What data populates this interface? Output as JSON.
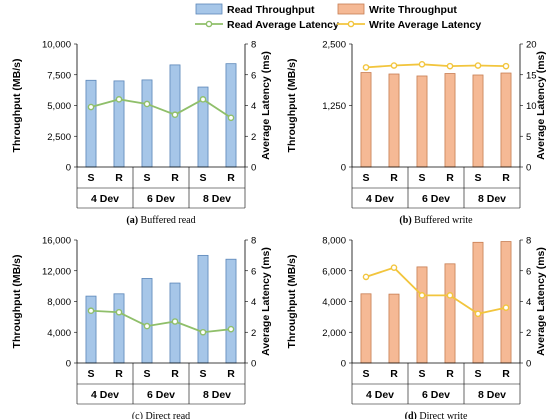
{
  "legend": {
    "items": [
      {
        "label": "Read Throughput",
        "kind": "bar",
        "color": "#a6c6e8",
        "edge": "#5b86b8"
      },
      {
        "label": "Write Throughput",
        "kind": "bar",
        "color": "#f5b995",
        "edge": "#c77d52"
      },
      {
        "label": "Read Average Latency",
        "kind": "line",
        "color": "#8fbf6a",
        "marker_fill": "#ffffff"
      },
      {
        "label": "Write Average Latency",
        "kind": "line",
        "color": "#f2c53d",
        "marker_fill": "#ffffff"
      }
    ]
  },
  "chart_data": [
    {
      "type": "bar",
      "caption_letter": "(a)",
      "caption_text": " Buffered read",
      "categories": [
        "S",
        "R",
        "S",
        "R",
        "S",
        "R"
      ],
      "groups": [
        "4 Dev",
        "6 Dev",
        "8 Dev"
      ],
      "ylabel": "Throughput (MB/s)",
      "y2label": "Average Latency  (ms)",
      "ylim": [
        0,
        10000
      ],
      "yticks": [
        "0",
        "2,500",
        "5,000",
        "7,500",
        "10,000"
      ],
      "y2lim": [
        0,
        8
      ],
      "y2ticks": [
        "0",
        "2",
        "4",
        "6",
        "8"
      ],
      "bar_color": "#a6c6e8",
      "bar_edge": "#5b86b8",
      "line_color": "#8fbf6a",
      "series": [
        {
          "name": "Read Throughput",
          "values": [
            7050,
            7000,
            7080,
            8300,
            6500,
            8400
          ]
        },
        {
          "name": "Read Average Latency",
          "values": [
            3.9,
            4.4,
            4.1,
            3.4,
            4.4,
            3.2
          ]
        }
      ]
    },
    {
      "type": "bar",
      "caption_letter": "(b)",
      "caption_text": " Buffered write",
      "categories": [
        "S",
        "R",
        "S",
        "R",
        "S",
        "R"
      ],
      "groups": [
        "4 Dev",
        "6 Dev",
        "8 Dev"
      ],
      "ylabel": "Throughput (MB/s)",
      "y2label": "Average Latency (ms)",
      "ylim": [
        0,
        2500
      ],
      "yticks": [
        "0",
        "1,250",
        "2,500"
      ],
      "y2lim": [
        0,
        20
      ],
      "y2ticks": [
        "0",
        "5",
        "10",
        "15",
        "20"
      ],
      "bar_color": "#f5b995",
      "bar_edge": "#c77d52",
      "line_color": "#f2c53d",
      "series": [
        {
          "name": "Write Throughput",
          "values": [
            1920,
            1890,
            1850,
            1900,
            1870,
            1910
          ]
        },
        {
          "name": "Write Average Latency",
          "values": [
            16.2,
            16.5,
            16.7,
            16.4,
            16.5,
            16.4
          ]
        }
      ]
    },
    {
      "type": "bar",
      "caption_letter": "",
      "caption_text": "(c) Direct read",
      "categories": [
        "S",
        "R",
        "S",
        "R",
        "S",
        "R"
      ],
      "groups": [
        "4 Dev",
        "6 Dev",
        "8 Dev"
      ],
      "ylabel": "Throughput (MB/s)",
      "y2label": "Average Latency (ms)",
      "ylim": [
        0,
        16000
      ],
      "yticks": [
        "0",
        "4,000",
        "8,000",
        "12,000",
        "16,000"
      ],
      "y2lim": [
        0,
        8
      ],
      "y2ticks": [
        "0",
        "2",
        "4",
        "6",
        "8"
      ],
      "bar_color": "#a6c6e8",
      "bar_edge": "#5b86b8",
      "line_color": "#8fbf6a",
      "series": [
        {
          "name": "Read Throughput",
          "values": [
            8700,
            9000,
            11000,
            10400,
            14000,
            13500
          ]
        },
        {
          "name": "Read Average Latency",
          "values": [
            3.4,
            3.3,
            2.4,
            2.7,
            2.0,
            2.2
          ]
        }
      ]
    },
    {
      "type": "bar",
      "caption_letter": "(d)",
      "caption_text": " Direct write",
      "categories": [
        "S",
        "R",
        "S",
        "R",
        "S",
        "R"
      ],
      "groups": [
        "4 Dev",
        "6 Dev",
        "8 Dev"
      ],
      "ylabel": "Throughput (MB/s)",
      "y2label": "Average Latency (ms)",
      "ylim": [
        0,
        8000
      ],
      "yticks": [
        "0",
        "2,000",
        "4,000",
        "6,000",
        "8,000"
      ],
      "y2lim": [
        0,
        8
      ],
      "y2ticks": [
        "0",
        "2",
        "4",
        "6",
        "8"
      ],
      "bar_color": "#f5b995",
      "bar_edge": "#c77d52",
      "line_color": "#f2c53d",
      "series": [
        {
          "name": "Write Throughput",
          "values": [
            4500,
            4480,
            6250,
            6450,
            7850,
            7900
          ]
        },
        {
          "name": "Write Average Latency",
          "values": [
            5.6,
            6.2,
            4.4,
            4.4,
            3.2,
            3.6
          ]
        }
      ]
    }
  ]
}
